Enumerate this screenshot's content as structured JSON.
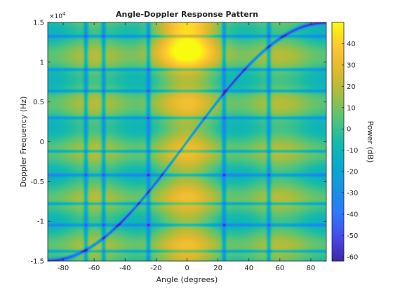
{
  "chart_data": {
    "type": "heatmap",
    "title": "Angle-Doppler Response Pattern",
    "xlabel": "Angle (degrees)",
    "ylabel": "Doppler Frequency (Hz)",
    "xlim": [
      -90,
      90
    ],
    "ylim": [
      -15000,
      15000
    ],
    "x_ticks": [
      -80,
      -60,
      -40,
      -20,
      0,
      20,
      40,
      60,
      80
    ],
    "y_ticks": [
      -1.5,
      -1,
      -0.5,
      0,
      0.5,
      1,
      1.5
    ],
    "y_tick_labels": [
      "-1.5",
      "-1",
      "-0.5",
      "0",
      "0.5",
      "1",
      "1.5"
    ],
    "y_multiplier": "×10",
    "y_multiplier_exponent": "4",
    "colorbar": {
      "label": "Power (dB)",
      "limits": [
        -62,
        50
      ],
      "ticks": [
        -60,
        -50,
        -40,
        -30,
        -20,
        -10,
        0,
        10,
        20,
        30,
        40
      ],
      "colormap": "parula"
    },
    "spatial_null_angles": [
      -65.5,
      -54,
      -25,
      24,
      53
    ],
    "doppler_null_frequencies": [
      -13800,
      -10500,
      -7800,
      -4200,
      -1200,
      3000,
      6400,
      9100,
      13300
    ],
    "clutter_ridge": "diagonal from (-90, -15000) to (90, 15000)",
    "peak_region": {
      "angle": 0,
      "doppler": 13000,
      "power_db": 45
    }
  }
}
